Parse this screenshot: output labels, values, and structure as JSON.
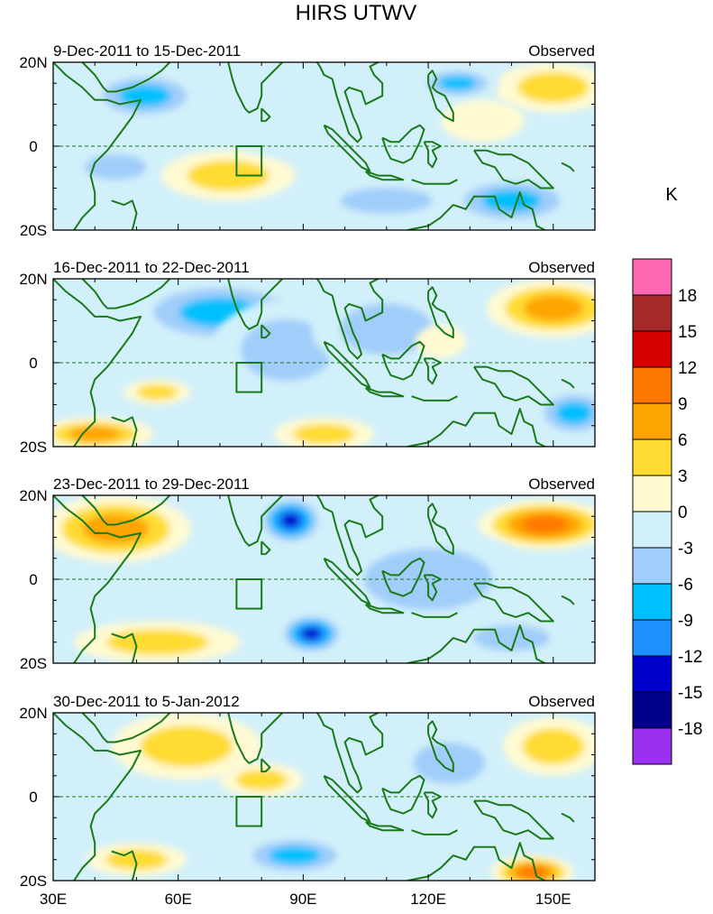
{
  "chart_data": {
    "type": "heatmap",
    "title": "HIRS UTWV",
    "units_label": "K",
    "x_ticks": [
      {
        "value": 30,
        "label": "30E"
      },
      {
        "value": 60,
        "label": "60E"
      },
      {
        "value": 90,
        "label": "90E"
      },
      {
        "value": 120,
        "label": "120E"
      },
      {
        "value": 150,
        "label": "150E"
      }
    ],
    "y_ticks": [
      {
        "value": 20,
        "label": "20N"
      },
      {
        "value": 0,
        "label": "0"
      },
      {
        "value": -20,
        "label": "20S"
      }
    ],
    "xlim": [
      30,
      160
    ],
    "ylim": [
      -20,
      20
    ],
    "colorbar": {
      "colors": [
        "#9b30f0",
        "#00008b",
        "#0000cd",
        "#1e90ff",
        "#00bfff",
        "#a0cdfa",
        "#d2f0fa",
        "#fffad2",
        "#ffdc32",
        "#ffa500",
        "#ff7800",
        "#d70000",
        "#a52a2a",
        "#ff69b4"
      ],
      "labels": [
        "-18",
        "-15",
        "-12",
        "-9",
        "-6",
        "-3",
        "0",
        "3",
        "6",
        "9",
        "12",
        "15",
        "18"
      ]
    },
    "box_region": {
      "lon": [
        74,
        80
      ],
      "lat": [
        -7,
        0
      ]
    },
    "panels": [
      {
        "period": "9-Dec-2011 to 15-Dec-2011",
        "tag": "Observed",
        "anomalies": [
          {
            "lon": 52,
            "lat": 12,
            "rx": 14,
            "ry": 6,
            "value": -8
          },
          {
            "lon": 45,
            "lat": -5,
            "rx": 12,
            "ry": 5,
            "value": -4
          },
          {
            "lon": 72,
            "lat": -7,
            "rx": 16,
            "ry": 6,
            "value": 5
          },
          {
            "lon": 90,
            "lat": 5,
            "rx": 20,
            "ry": 8,
            "value": -3
          },
          {
            "lon": 110,
            "lat": -13,
            "rx": 18,
            "ry": 5,
            "value": -5
          },
          {
            "lon": 140,
            "lat": -13,
            "rx": 16,
            "ry": 6,
            "value": -7
          },
          {
            "lon": 150,
            "lat": 14,
            "rx": 14,
            "ry": 6,
            "value": 6
          },
          {
            "lon": 127,
            "lat": 15,
            "rx": 10,
            "ry": 4,
            "value": -7
          },
          {
            "lon": 133,
            "lat": 6,
            "rx": 10,
            "ry": 5,
            "value": 3
          }
        ]
      },
      {
        "period": "16-Dec-2011 to 22-Dec-2011",
        "tag": "Observed",
        "anomalies": [
          {
            "lon": 70,
            "lat": 12,
            "rx": 22,
            "ry": 8,
            "value": -7
          },
          {
            "lon": 86,
            "lat": 3,
            "rx": 18,
            "ry": 12,
            "value": -4
          },
          {
            "lon": 110,
            "lat": 8,
            "rx": 18,
            "ry": 10,
            "value": -5
          },
          {
            "lon": 155,
            "lat": -12,
            "rx": 10,
            "ry": 6,
            "value": -7
          },
          {
            "lon": 150,
            "lat": 13,
            "rx": 16,
            "ry": 7,
            "value": 7
          },
          {
            "lon": 40,
            "lat": -17,
            "rx": 14,
            "ry": 4,
            "value": 7
          },
          {
            "lon": 95,
            "lat": -17,
            "rx": 12,
            "ry": 4,
            "value": 5
          },
          {
            "lon": 123,
            "lat": 5,
            "rx": 6,
            "ry": 4,
            "value": 3
          },
          {
            "lon": 55,
            "lat": -7,
            "rx": 8,
            "ry": 3,
            "value": 4
          }
        ]
      },
      {
        "period": "23-Dec-2011 to 29-Dec-2011",
        "tag": "Observed",
        "anomalies": [
          {
            "lon": 87,
            "lat": 14,
            "rx": 8,
            "ry": 6,
            "value": -15
          },
          {
            "lon": 92,
            "lat": -13,
            "rx": 8,
            "ry": 5,
            "value": -13
          },
          {
            "lon": 45,
            "lat": 12,
            "rx": 18,
            "ry": 8,
            "value": 7
          },
          {
            "lon": 148,
            "lat": 13,
            "rx": 16,
            "ry": 6,
            "value": 11
          },
          {
            "lon": 120,
            "lat": 0,
            "rx": 25,
            "ry": 12,
            "value": -5
          },
          {
            "lon": 55,
            "lat": -15,
            "rx": 20,
            "ry": 5,
            "value": 5
          },
          {
            "lon": 140,
            "lat": -14,
            "rx": 15,
            "ry": 5,
            "value": -6
          }
        ]
      },
      {
        "period": "30-Dec-2011 to 5-Jan-2012",
        "tag": "Observed",
        "anomalies": [
          {
            "lon": 88,
            "lat": -14,
            "rx": 14,
            "ry": 5,
            "value": -8
          },
          {
            "lon": 62,
            "lat": 12,
            "rx": 18,
            "ry": 8,
            "value": 5
          },
          {
            "lon": 145,
            "lat": -18,
            "rx": 10,
            "ry": 4,
            "value": 12
          },
          {
            "lon": 125,
            "lat": 8,
            "rx": 14,
            "ry": 8,
            "value": -4
          },
          {
            "lon": 150,
            "lat": 12,
            "rx": 12,
            "ry": 7,
            "value": 5
          },
          {
            "lon": 80,
            "lat": 4,
            "rx": 10,
            "ry": 4,
            "value": 6
          },
          {
            "lon": 50,
            "lat": -15,
            "rx": 12,
            "ry": 4,
            "value": 6
          }
        ]
      }
    ]
  }
}
